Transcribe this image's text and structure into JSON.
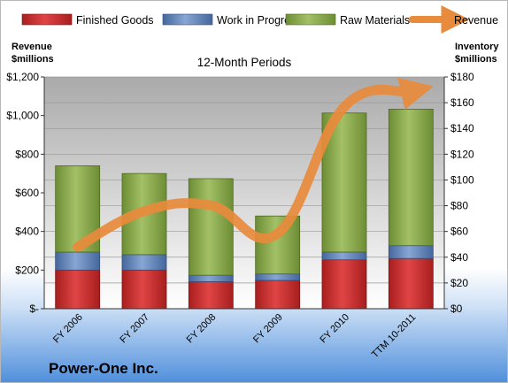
{
  "company": "Power-One Inc.",
  "chart_data": {
    "type": "bar",
    "title": "12-Month Periods",
    "left_axis": {
      "label_line1": "Revenue",
      "label_line2": "$millions",
      "ylim": [
        0,
        1200
      ],
      "ticks": [
        "$-",
        "$200",
        "$400",
        "$600",
        "$800",
        "$1,000",
        "$1,200"
      ]
    },
    "right_axis": {
      "label_line1": "Inventory",
      "label_line2": "$millions",
      "ylim": [
        0,
        180
      ],
      "ticks": [
        "$0",
        "$20",
        "$40",
        "$60",
        "$80",
        "$100",
        "$120",
        "$140",
        "$160",
        "$180"
      ]
    },
    "categories": [
      "FY 2006",
      "FY 2007",
      "FY 2008",
      "FY 2009",
      "FY 2010",
      "TTM 10-2011"
    ],
    "series": [
      {
        "name": "Finished Goods",
        "axis": "right",
        "stacked": true,
        "color": "#cc2a2a",
        "values": [
          30,
          30,
          21,
          22,
          38,
          39
        ]
      },
      {
        "name": "Work in Progress",
        "axis": "right",
        "stacked": true,
        "color": "#5b7fb5",
        "values": [
          14,
          12,
          5,
          5,
          6,
          10
        ]
      },
      {
        "name": "Raw Materials",
        "axis": "right",
        "stacked": true,
        "color": "#8aaa4c",
        "values": [
          67,
          63,
          75,
          45,
          108,
          106
        ]
      },
      {
        "name": "Revenue",
        "axis": "left",
        "type": "line",
        "color": "#e98b3c",
        "values": [
          320,
          505,
          535,
          390,
          1045,
          1125
        ]
      }
    ],
    "legend_position": "top",
    "grid": true
  }
}
